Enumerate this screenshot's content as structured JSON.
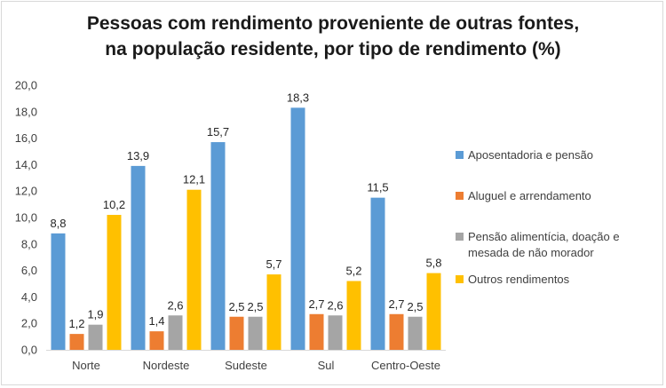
{
  "chart_data": {
    "type": "bar",
    "title_lines": [
      "Pessoas com rendimento proveniente de outras fontes,",
      "na população residente, por tipo de rendimento (%)"
    ],
    "categories": [
      "Norte",
      "Nordeste",
      "Sudeste",
      "Sul",
      "Centro-Oeste"
    ],
    "series": [
      {
        "name": "Aposentadoria e pensão",
        "color": "#5b9bd5",
        "values": [
          8.8,
          13.9,
          15.7,
          18.3,
          11.5
        ],
        "labels": [
          "8,8",
          "13,9",
          "15,7",
          "18,3",
          "11,5"
        ]
      },
      {
        "name": "Aluguel e arrendamento",
        "color": "#ed7d31",
        "values": [
          1.2,
          1.4,
          2.5,
          2.7,
          2.7
        ],
        "labels": [
          "1,2",
          "1,4",
          "2,5",
          "2,7",
          "2,7"
        ]
      },
      {
        "name": "Pensão alimentícia, doação e mesada de não morador",
        "color": "#a5a5a5",
        "values": [
          1.9,
          2.6,
          2.5,
          2.6,
          2.5
        ],
        "labels": [
          "1,9",
          "2,6",
          "2,5",
          "2,6",
          "2,5"
        ]
      },
      {
        "name": "Outros rendimentos",
        "color": "#ffc000",
        "values": [
          10.2,
          12.1,
          5.7,
          5.2,
          5.8
        ],
        "labels": [
          "10,2",
          "12,1",
          "5,7",
          "5,2",
          "5,8"
        ]
      }
    ],
    "y_ticks": [
      "0,0",
      "2,0",
      "4,0",
      "6,0",
      "8,0",
      "10,0",
      "12,0",
      "14,0",
      "16,0",
      "18,0",
      "20,0"
    ],
    "ylim": [
      0,
      20
    ],
    "grid": false,
    "legend_position": "right"
  }
}
